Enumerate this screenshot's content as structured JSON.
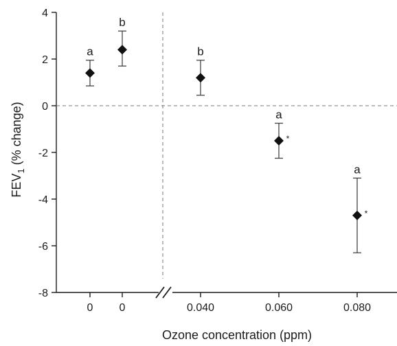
{
  "chart_data": {
    "type": "scatter",
    "xlabel": "Ozone concentration (ppm)",
    "ylabel_main": "FEV",
    "ylabel_sub": "1",
    "ylabel_tail": " (% change)",
    "ylim": [
      -8,
      4
    ],
    "yticks": [
      -8,
      -6,
      -4,
      -2,
      0,
      2,
      4
    ],
    "categories": [
      "0",
      "0",
      "0.040",
      "0.060",
      "0.080"
    ],
    "values": [
      1.4,
      2.4,
      1.2,
      -1.5,
      -4.7
    ],
    "err_upper": [
      1.95,
      3.2,
      1.95,
      -0.75,
      -3.1
    ],
    "err_lower": [
      0.85,
      1.7,
      0.45,
      -2.25,
      -6.3
    ],
    "letters": [
      "a",
      "b",
      "b",
      "a",
      "a"
    ],
    "asterisks": [
      "",
      "",
      "",
      "*",
      "*"
    ],
    "grid": false,
    "reference_lines": "dashed horizontal at y=0; dashed vertical between the two 0 groups and 0.040",
    "axis_break": "between the two 0 groups and 0.040"
  }
}
